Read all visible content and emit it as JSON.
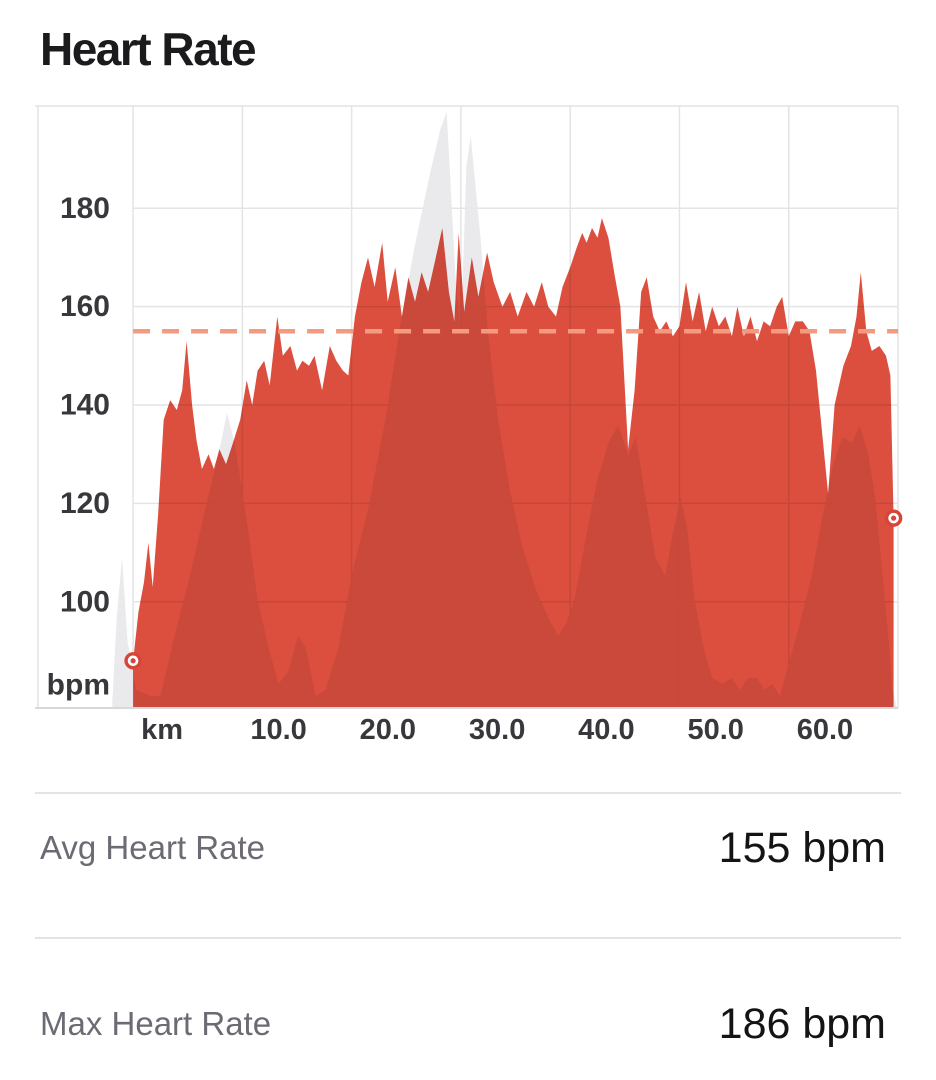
{
  "title": "Heart Rate",
  "stats": [
    {
      "label": "Avg Heart Rate",
      "value": "155 bpm"
    },
    {
      "label": "Max Heart Rate",
      "value": "186 bpm"
    }
  ],
  "colors": {
    "hr_red": "#dc4f3e",
    "elevation_gray": "#e8e8eb",
    "gridline": "#e4e4e7",
    "axis_line": "#d8d8db",
    "avg_dash": "#f39b80",
    "marker_ring": "#d6453a",
    "tick_label": "#38383c",
    "title_color": "#1b1b1d",
    "stat_label_gray": "#6b6b73",
    "stat_value_black": "#141417",
    "divider": "#e4e4e7"
  },
  "chart_data": {
    "type": "area",
    "x_unit": "km",
    "y_unit": "bpm",
    "xlim_km": [
      -8.7,
      70.0
    ],
    "ylim_bpm": [
      78.4,
      200.8
    ],
    "grid": true,
    "avg_line_bpm": 155,
    "x_ticks": [
      {
        "km": 0,
        "label": "km"
      },
      {
        "km": 10,
        "label": "10.0"
      },
      {
        "km": 20,
        "label": "20.0"
      },
      {
        "km": 30,
        "label": "30.0"
      },
      {
        "km": 40,
        "label": "40.0"
      },
      {
        "km": 50,
        "label": "50.0"
      },
      {
        "km": 60,
        "label": "60.0"
      }
    ],
    "y_ticks": [
      {
        "bpm": 100,
        "label": "100"
      },
      {
        "bpm": 120,
        "label": "120"
      },
      {
        "bpm": 140,
        "label": "140"
      },
      {
        "bpm": 160,
        "label": "160"
      },
      {
        "bpm": 180,
        "label": "180"
      }
    ],
    "y_axis_unit_label": "bpm",
    "markers": [
      {
        "name": "start",
        "km": 0,
        "bpm": 88
      },
      {
        "name": "end",
        "km": 69.6,
        "bpm": 117
      }
    ],
    "series": [
      {
        "name": "elevation",
        "value_kind": "fraction_of_plot_height",
        "color": "#e8e8eb",
        "opacity": 0.9,
        "points": [
          [
            -1.9,
            0.01
          ],
          [
            -1.5,
            0.15
          ],
          [
            -1.0,
            0.25
          ],
          [
            -0.5,
            0.11
          ],
          [
            0.3,
            0.03
          ],
          [
            1.6,
            0.02
          ],
          [
            2.5,
            0.02
          ],
          [
            3.8,
            0.12
          ],
          [
            5.2,
            0.22
          ],
          [
            6.6,
            0.33
          ],
          [
            7.8,
            0.42
          ],
          [
            8.6,
            0.49
          ],
          [
            9.3,
            0.44
          ],
          [
            10.5,
            0.3
          ],
          [
            11.4,
            0.18
          ],
          [
            12.4,
            0.1
          ],
          [
            13.3,
            0.04
          ],
          [
            14.2,
            0.06
          ],
          [
            15.1,
            0.12
          ],
          [
            15.8,
            0.1
          ],
          [
            16.7,
            0.02
          ],
          [
            17.6,
            0.03
          ],
          [
            18.8,
            0.1
          ],
          [
            20.0,
            0.22
          ],
          [
            21.5,
            0.33
          ],
          [
            23.1,
            0.48
          ],
          [
            24.4,
            0.63
          ],
          [
            25.8,
            0.77
          ],
          [
            27.2,
            0.89
          ],
          [
            28.1,
            0.96
          ],
          [
            28.7,
            0.99
          ],
          [
            29.5,
            0.72
          ],
          [
            30.0,
            0.62
          ],
          [
            30.5,
            0.9
          ],
          [
            30.9,
            0.95
          ],
          [
            31.8,
            0.78
          ],
          [
            32.5,
            0.62
          ],
          [
            33.4,
            0.48
          ],
          [
            34.5,
            0.36
          ],
          [
            35.6,
            0.27
          ],
          [
            36.8,
            0.2
          ],
          [
            38.0,
            0.15
          ],
          [
            38.9,
            0.12
          ],
          [
            39.6,
            0.14
          ],
          [
            40.4,
            0.18
          ],
          [
            41.4,
            0.28
          ],
          [
            42.5,
            0.38
          ],
          [
            43.5,
            0.44
          ],
          [
            44.4,
            0.47
          ],
          [
            45.3,
            0.42
          ],
          [
            46.0,
            0.45
          ],
          [
            46.8,
            0.36
          ],
          [
            47.8,
            0.25
          ],
          [
            48.7,
            0.22
          ],
          [
            49.4,
            0.29
          ],
          [
            50.1,
            0.35
          ],
          [
            50.7,
            0.3
          ],
          [
            51.4,
            0.18
          ],
          [
            52.2,
            0.1
          ],
          [
            53.0,
            0.05
          ],
          [
            53.9,
            0.04
          ],
          [
            54.8,
            0.05
          ],
          [
            55.5,
            0.03
          ],
          [
            56.3,
            0.05
          ],
          [
            57.1,
            0.05
          ],
          [
            57.8,
            0.03
          ],
          [
            58.5,
            0.04
          ],
          [
            59.2,
            0.02
          ],
          [
            60.1,
            0.08
          ],
          [
            61.0,
            0.14
          ],
          [
            62.1,
            0.22
          ],
          [
            63.0,
            0.31
          ],
          [
            64.0,
            0.4
          ],
          [
            64.9,
            0.45
          ],
          [
            65.8,
            0.44
          ],
          [
            66.5,
            0.47
          ],
          [
            67.3,
            0.42
          ],
          [
            67.9,
            0.35
          ],
          [
            68.5,
            0.24
          ],
          [
            69.1,
            0.12
          ],
          [
            69.5,
            0.03
          ],
          [
            69.9,
            0.0
          ]
        ]
      },
      {
        "name": "heart_rate",
        "value_kind": "bpm",
        "color": "#dc4f3e",
        "opacity": 1,
        "points": [
          [
            0,
            88
          ],
          [
            0.5,
            98
          ],
          [
            1,
            104
          ],
          [
            1.4,
            112
          ],
          [
            1.8,
            103
          ],
          [
            2.3,
            118
          ],
          [
            2.8,
            137
          ],
          [
            3.4,
            141
          ],
          [
            4,
            139
          ],
          [
            4.5,
            143
          ],
          [
            4.9,
            153
          ],
          [
            5.4,
            140
          ],
          [
            5.8,
            133
          ],
          [
            6.3,
            127
          ],
          [
            6.9,
            130
          ],
          [
            7.4,
            127
          ],
          [
            7.9,
            131
          ],
          [
            8.5,
            128
          ],
          [
            9.1,
            132
          ],
          [
            9.8,
            137
          ],
          [
            10.4,
            145
          ],
          [
            10.9,
            140
          ],
          [
            11.4,
            147
          ],
          [
            12,
            149
          ],
          [
            12.5,
            144
          ],
          [
            13.2,
            158
          ],
          [
            13.7,
            150
          ],
          [
            14.4,
            152
          ],
          [
            15,
            147
          ],
          [
            15.5,
            149
          ],
          [
            16.1,
            148
          ],
          [
            16.6,
            150
          ],
          [
            17.3,
            143
          ],
          [
            18,
            152
          ],
          [
            18.6,
            149
          ],
          [
            19.2,
            147
          ],
          [
            19.7,
            146
          ],
          [
            20.3,
            158
          ],
          [
            20.9,
            165
          ],
          [
            21.5,
            170
          ],
          [
            22.1,
            164
          ],
          [
            22.8,
            173
          ],
          [
            23.3,
            161
          ],
          [
            24,
            168
          ],
          [
            24.6,
            158
          ],
          [
            25.2,
            166
          ],
          [
            25.8,
            161
          ],
          [
            26.4,
            167
          ],
          [
            27,
            163
          ],
          [
            27.7,
            170
          ],
          [
            28.3,
            176
          ],
          [
            28.9,
            163
          ],
          [
            29.4,
            157
          ],
          [
            29.8,
            175
          ],
          [
            30.3,
            159
          ],
          [
            31,
            170
          ],
          [
            31.6,
            162
          ],
          [
            32.4,
            171
          ],
          [
            33,
            165
          ],
          [
            33.8,
            160
          ],
          [
            34.5,
            163
          ],
          [
            35.2,
            158
          ],
          [
            36,
            163
          ],
          [
            36.7,
            160
          ],
          [
            37.4,
            165
          ],
          [
            38,
            160
          ],
          [
            38.7,
            158
          ],
          [
            39.3,
            164
          ],
          [
            40,
            168
          ],
          [
            40.6,
            172
          ],
          [
            41.1,
            175
          ],
          [
            41.5,
            173
          ],
          [
            42,
            176
          ],
          [
            42.5,
            174
          ],
          [
            42.9,
            178
          ],
          [
            43.5,
            174
          ],
          [
            44.1,
            166
          ],
          [
            44.6,
            160
          ],
          [
            45.3,
            131
          ],
          [
            45.9,
            143
          ],
          [
            46.5,
            163
          ],
          [
            47,
            166
          ],
          [
            47.6,
            158
          ],
          [
            48.2,
            155
          ],
          [
            48.8,
            157
          ],
          [
            49.4,
            154
          ],
          [
            50,
            156
          ],
          [
            50.6,
            165
          ],
          [
            51.2,
            157
          ],
          [
            51.8,
            163
          ],
          [
            52.4,
            155
          ],
          [
            53,
            160
          ],
          [
            53.6,
            156
          ],
          [
            54.2,
            158
          ],
          [
            54.8,
            154
          ],
          [
            55.3,
            160
          ],
          [
            55.9,
            154
          ],
          [
            56.5,
            158
          ],
          [
            57.1,
            153
          ],
          [
            57.7,
            157
          ],
          [
            58.3,
            156
          ],
          [
            58.9,
            160
          ],
          [
            59.4,
            162
          ],
          [
            60,
            154
          ],
          [
            60.6,
            157
          ],
          [
            61.3,
            157
          ],
          [
            61.9,
            155
          ],
          [
            62.5,
            147
          ],
          [
            63.6,
            122
          ],
          [
            64.2,
            140
          ],
          [
            65,
            148
          ],
          [
            65.7,
            152
          ],
          [
            66.2,
            158
          ],
          [
            66.6,
            167
          ],
          [
            67.1,
            155
          ],
          [
            67.6,
            151
          ],
          [
            68.3,
            152
          ],
          [
            68.9,
            150
          ],
          [
            69.3,
            146
          ],
          [
            69.6,
            117
          ]
        ]
      }
    ]
  }
}
